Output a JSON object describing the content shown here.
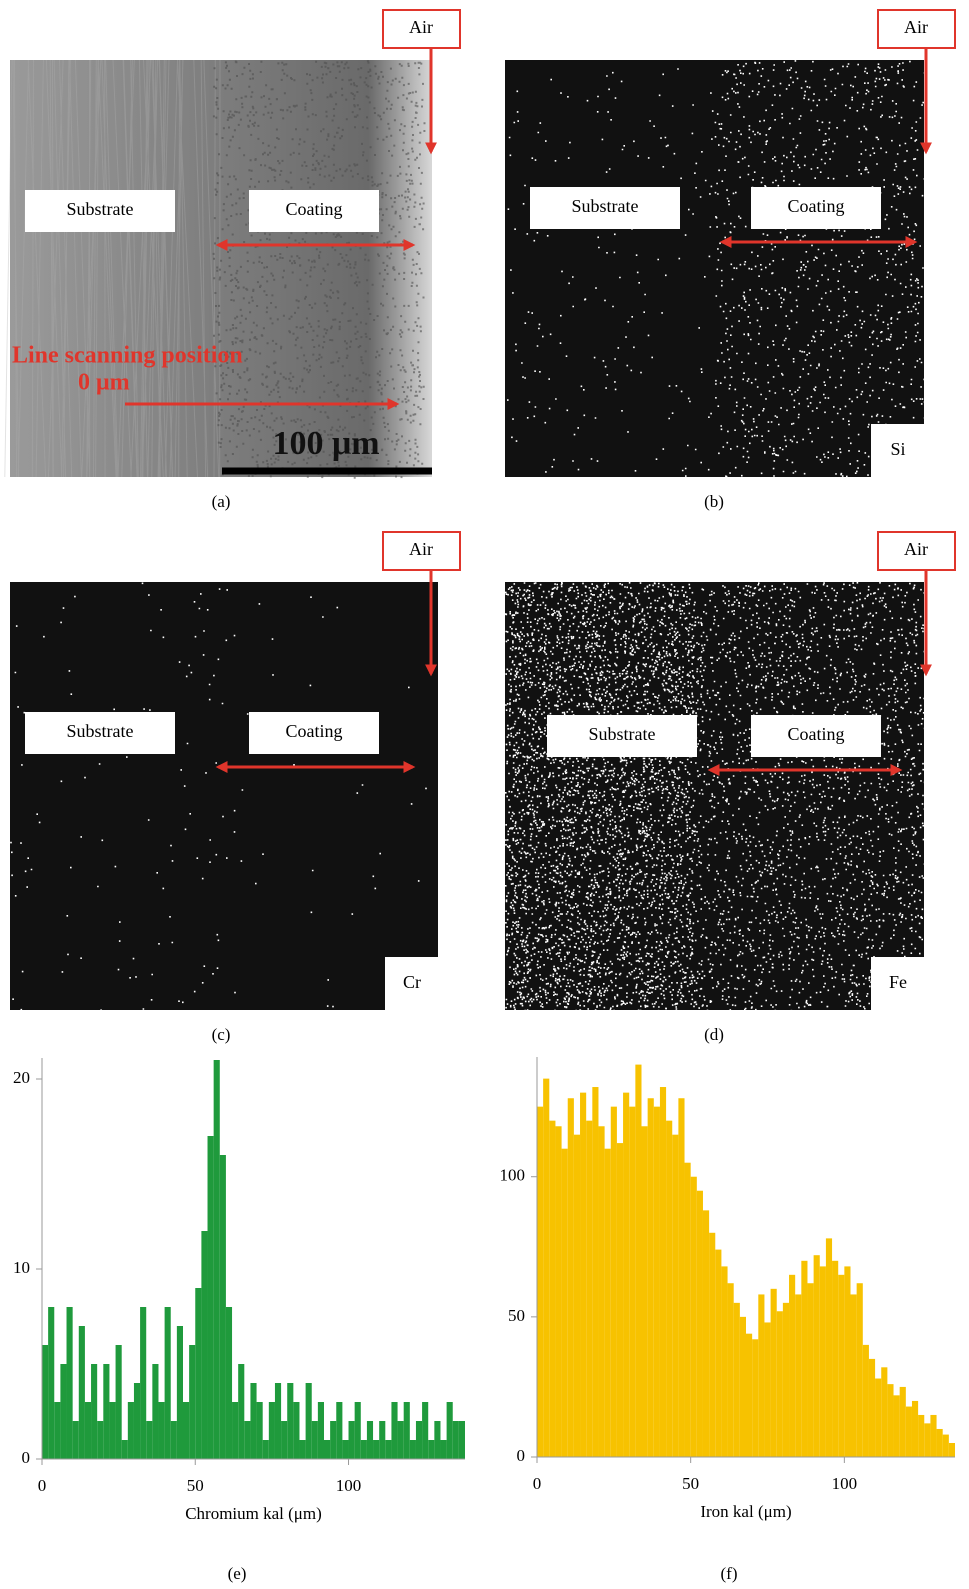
{
  "panels": [
    {
      "caption": "(a)",
      "air": "Air",
      "substrate": "Substrate",
      "coating": "Coating",
      "scan_label": "Line scanning position",
      "zero": "0 μm",
      "scale": "100 μm"
    },
    {
      "caption": "(b)",
      "air": "Air",
      "substrate": "Substrate",
      "coating": "Coating",
      "element": "Si"
    },
    {
      "caption": "(c)",
      "air": "Air",
      "substrate": "Substrate",
      "coating": "Coating",
      "element": "Cr"
    },
    {
      "caption": "(d)",
      "air": "Air",
      "substrate": "Substrate",
      "coating": "Coating",
      "element": "Fe"
    }
  ],
  "chart_data": [
    {
      "type": "histogram",
      "caption": "(e)",
      "x_label": "Chromium kal (μm)",
      "color": "#1f9a3c",
      "xlim": [
        0,
        138
      ],
      "ylim": [
        0,
        21
      ],
      "xticks": [
        0,
        50,
        100
      ],
      "yticks": [
        0,
        10,
        20
      ],
      "x": [
        0,
        2,
        4,
        6,
        8,
        10,
        12,
        14,
        16,
        18,
        20,
        22,
        24,
        26,
        28,
        30,
        32,
        34,
        36,
        38,
        40,
        42,
        44,
        46,
        48,
        50,
        52,
        54,
        56,
        58,
        60,
        62,
        64,
        66,
        68,
        70,
        72,
        74,
        76,
        78,
        80,
        82,
        84,
        86,
        88,
        90,
        92,
        94,
        96,
        98,
        100,
        102,
        104,
        106,
        108,
        110,
        112,
        114,
        116,
        118,
        120,
        122,
        124,
        126,
        128,
        130,
        132,
        134,
        136
      ],
      "values": [
        6,
        8,
        3,
        5,
        8,
        2,
        7,
        3,
        5,
        2,
        5,
        3,
        6,
        1,
        3,
        4,
        8,
        2,
        5,
        3,
        8,
        2,
        7,
        3,
        6,
        9,
        12,
        17,
        21,
        16,
        8,
        3,
        5,
        2,
        4,
        3,
        1,
        3,
        4,
        2,
        4,
        3,
        1,
        4,
        2,
        3,
        1,
        2,
        3,
        1,
        2,
        3,
        1,
        2,
        1,
        2,
        1,
        3,
        2,
        3,
        1,
        2,
        3,
        1,
        2,
        1,
        3,
        2,
        2
      ]
    },
    {
      "type": "histogram",
      "caption": "(f)",
      "x_label": "Iron kal (μm)",
      "color": "#f7c200",
      "xlim": [
        0,
        136
      ],
      "ylim": [
        0,
        142
      ],
      "xticks": [
        0,
        50,
        100
      ],
      "yticks": [
        0,
        50,
        100
      ],
      "x": [
        0,
        2,
        4,
        6,
        8,
        10,
        12,
        14,
        16,
        18,
        20,
        22,
        24,
        26,
        28,
        30,
        32,
        34,
        36,
        38,
        40,
        42,
        44,
        46,
        48,
        50,
        52,
        54,
        56,
        58,
        60,
        62,
        64,
        66,
        68,
        70,
        72,
        74,
        76,
        78,
        80,
        82,
        84,
        86,
        88,
        90,
        92,
        94,
        96,
        98,
        100,
        102,
        104,
        106,
        108,
        110,
        112,
        114,
        116,
        118,
        120,
        122,
        124,
        126,
        128,
        130,
        132,
        134
      ],
      "values": [
        125,
        135,
        120,
        118,
        110,
        128,
        115,
        130,
        120,
        132,
        118,
        110,
        125,
        112,
        130,
        125,
        140,
        118,
        128,
        125,
        132,
        120,
        115,
        128,
        105,
        100,
        95,
        88,
        80,
        74,
        68,
        62,
        55,
        50,
        44,
        42,
        58,
        48,
        60,
        52,
        55,
        65,
        58,
        70,
        62,
        72,
        68,
        78,
        70,
        65,
        68,
        58,
        62,
        40,
        35,
        28,
        32,
        26,
        22,
        25,
        18,
        20,
        15,
        12,
        15,
        10,
        8,
        5
      ]
    }
  ]
}
